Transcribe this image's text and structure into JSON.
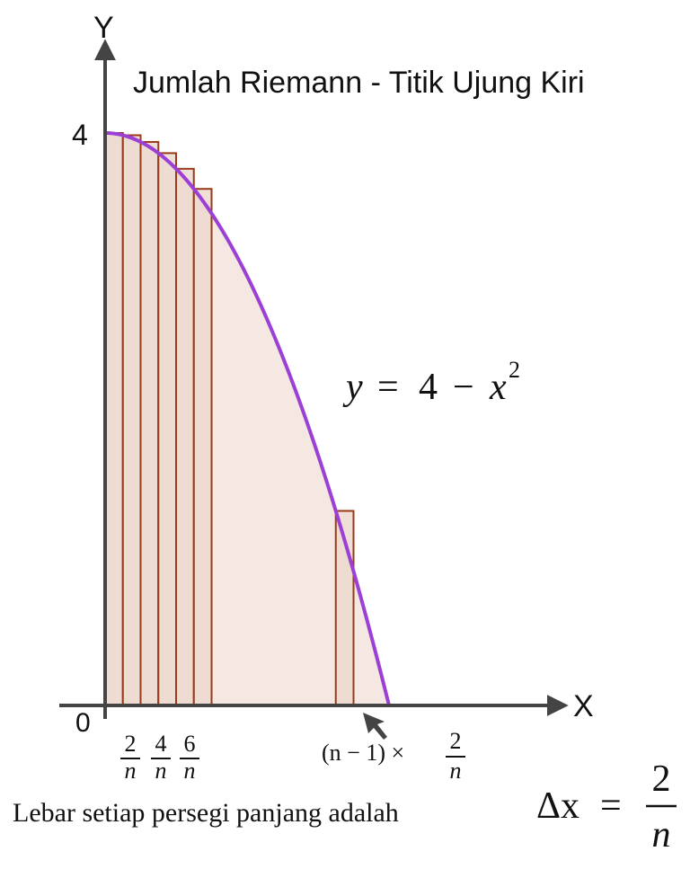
{
  "title": "Jumlah Riemann - Titik Ujung Kiri",
  "axes": {
    "x_label": "X",
    "y_label": "Y",
    "origin_label": "0",
    "y_tick_label": "4"
  },
  "function_label": {
    "lhs": "y",
    "eq": "=",
    "four": "4",
    "minus": "−",
    "var": "x",
    "exp": "2"
  },
  "tick_fractions": [
    {
      "num": "2",
      "den": "n"
    },
    {
      "num": "4",
      "den": "n"
    },
    {
      "num": "6",
      "den": "n"
    }
  ],
  "last_tick": {
    "prefix": "(n − 1) ×",
    "num": "2",
    "den": "n"
  },
  "footer": {
    "text": "Lebar setiap persegi panjang adalah",
    "delta": "Δx",
    "eq": "=",
    "num": "2",
    "den": "n"
  },
  "chart_data": {
    "type": "area",
    "function": "y = 4 - x^2",
    "domain": [
      0,
      2
    ],
    "n": 16,
    "shown_rectangle_indices": [
      0,
      1,
      2,
      3,
      4,
      5,
      13
    ],
    "rect_heights": [
      4,
      3.984,
      3.938,
      3.859,
      3.75,
      3.609
    ],
    "last_rect_height": 1.359,
    "ylim": [
      0,
      4
    ],
    "xlim": [
      0,
      2
    ],
    "colors": {
      "curve": "#9b3fd6",
      "rect_fill": "#ecd9cf",
      "rect_stroke": "#9a3a18",
      "area_fill": "#f5e8e2",
      "axis": "#222222"
    }
  }
}
